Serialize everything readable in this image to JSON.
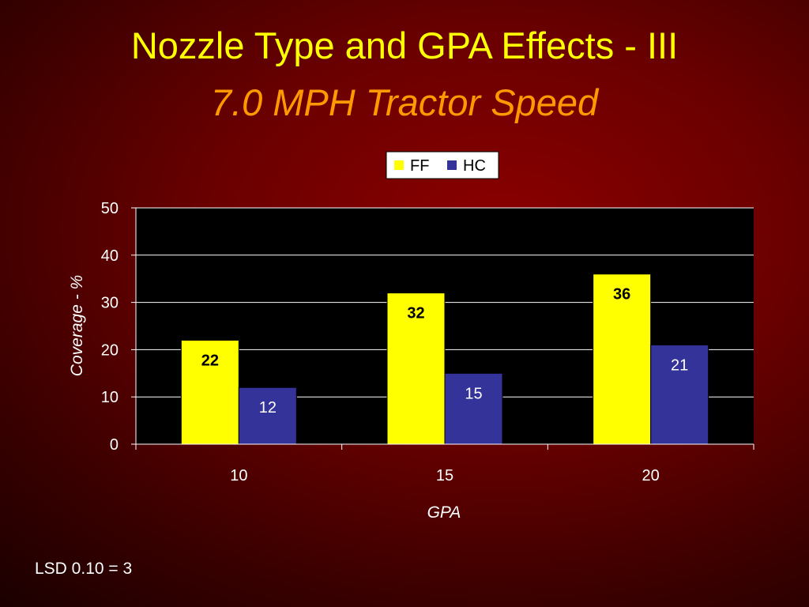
{
  "slide": {
    "title": "Nozzle Type and GPA Effects - III",
    "subtitle": "7.0 MPH Tractor Speed",
    "footnote": "LSD 0.10 = 3"
  },
  "chart_data": {
    "type": "bar",
    "categories": [
      "10",
      "15",
      "20"
    ],
    "series": [
      {
        "name": "FF",
        "values": [
          22,
          32,
          36
        ],
        "color": "#ffff00",
        "label_color": "#000000",
        "label_bold": true
      },
      {
        "name": "HC",
        "values": [
          12,
          15,
          21
        ],
        "color": "#333399",
        "label_color": "#ffffff",
        "label_bold": false
      }
    ],
    "xlabel": "GPA",
    "ylabel": "Coverage - %",
    "ylim": [
      0,
      50
    ],
    "yticks": [
      0,
      10,
      20,
      30,
      40,
      50
    ],
    "grid": true,
    "legend": "top-center",
    "plot_background": "#000000",
    "grid_color": "#ffffff"
  }
}
